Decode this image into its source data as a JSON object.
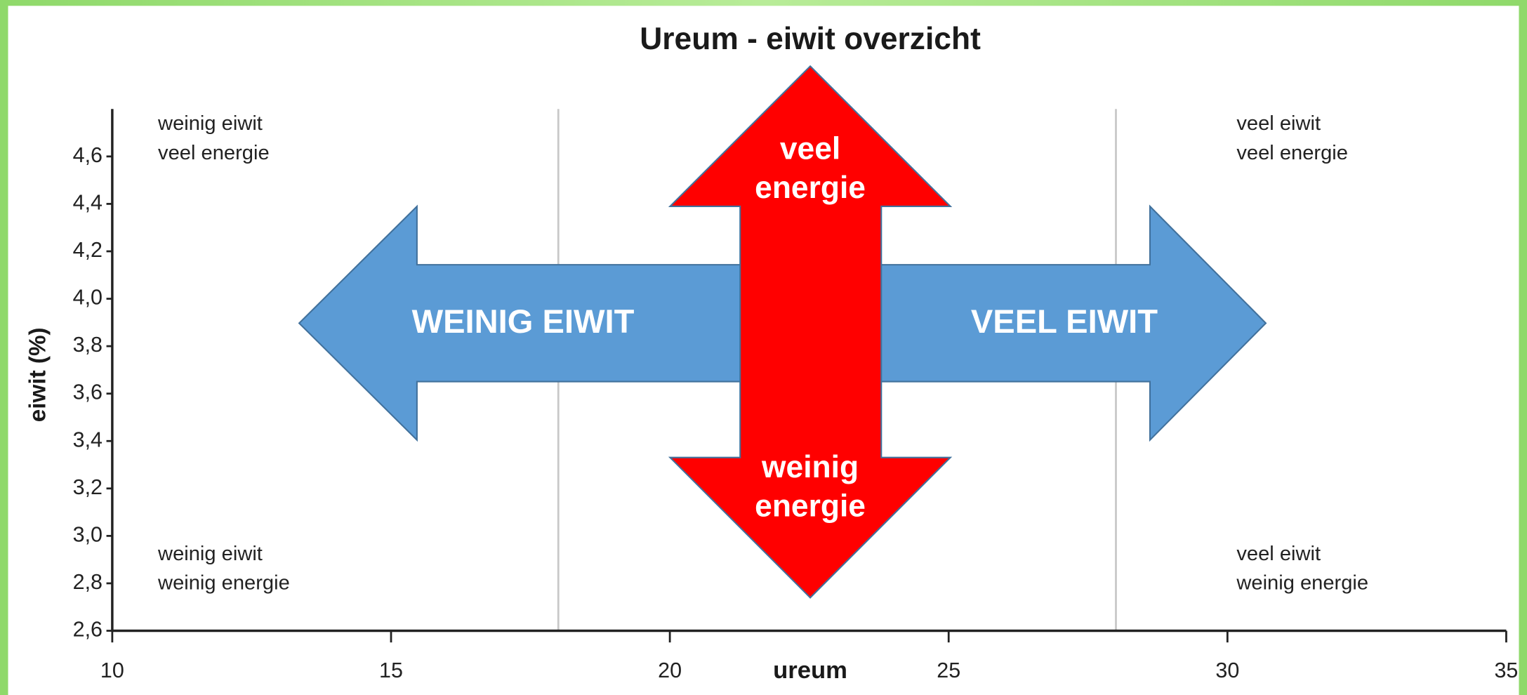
{
  "chart_data": {
    "type": "quadrant",
    "title": "Ureum - eiwit overzicht",
    "x_label": "ureum",
    "y_label": "eiwit (%)",
    "xlim": [
      10,
      35
    ],
    "xticks": [
      10,
      15,
      20,
      25,
      30,
      35
    ],
    "ylim": [
      2.6,
      4.8
    ],
    "yticks": [
      {
        "value": 2.6,
        "label": "2,6"
      },
      {
        "value": 2.8,
        "label": "2,8"
      },
      {
        "value": 3.0,
        "label": "3,0"
      },
      {
        "value": 3.2,
        "label": "3,2"
      },
      {
        "value": 3.4,
        "label": "3,4"
      },
      {
        "value": 3.6,
        "label": "3,6"
      },
      {
        "value": 3.8,
        "label": "3,8"
      },
      {
        "value": 4.0,
        "label": "4,0"
      },
      {
        "value": 4.2,
        "label": "4,2"
      },
      {
        "value": 4.4,
        "label": "4,4"
      },
      {
        "value": 4.6,
        "label": "4,6"
      }
    ],
    "vlines": [
      18,
      28
    ],
    "vline_color": "#c8c8c8",
    "quadrant_notes": [
      [
        "weinig eiwit",
        "veel energie"
      ],
      [
        "veel eiwit",
        "veel energie"
      ],
      [
        "weinig eiwit",
        "weinig energie"
      ],
      [
        "veel eiwit",
        "weinig energie"
      ]
    ],
    "horizontal_arrow": {
      "left": "WEINIG EIWIT",
      "right": "VEEL EIWIT",
      "color": "#5b9bd5"
    },
    "vertical_arrow": {
      "top": [
        "veel",
        "energie"
      ],
      "bottom": [
        "weinig",
        "energie"
      ],
      "color": "#ff0000"
    }
  }
}
